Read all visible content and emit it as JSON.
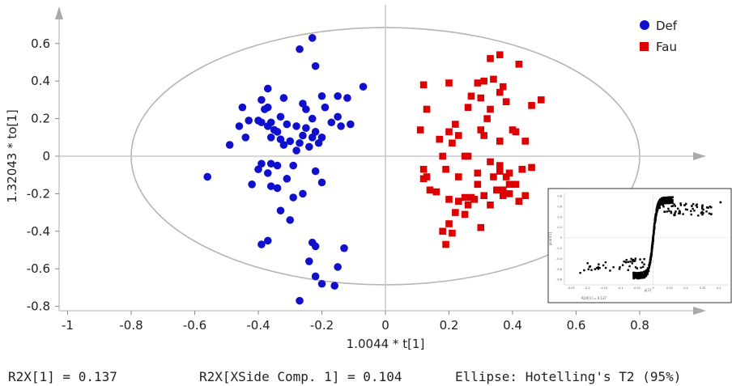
{
  "chart_data": {
    "type": "scatter",
    "title": "",
    "xlabel": "1.0044 * t[1]",
    "ylabel": "1.32043 * to[1]",
    "xlim": [
      -1,
      1.0
    ],
    "ylim": [
      -0.8,
      0.75
    ],
    "x_ticks": [
      "-1",
      "-0.8",
      "-0.6",
      "-0.4",
      "-0.2",
      "0",
      "0.2",
      "0.4",
      "0.6",
      "0.8"
    ],
    "y_ticks": [
      "0.6",
      "0.4",
      "0.2",
      "0",
      "-0.2",
      "-0.4",
      "-0.6",
      "-0.8"
    ],
    "legend_position": "top-right",
    "colors": {
      "Def": "#1010cc",
      "Fau": "#dd0000",
      "ellipse": "#b5b5b5",
      "axes": "#c8c8c8"
    },
    "ellipse": {
      "cx": 0.0,
      "cy": 0.0,
      "rx": 0.8,
      "ry": 0.685
    },
    "series": [
      {
        "name": "Def",
        "marker": "circle",
        "points": [
          [
            -0.23,
            0.63
          ],
          [
            -0.27,
            0.57
          ],
          [
            -0.22,
            0.48
          ],
          [
            -0.07,
            0.37
          ],
          [
            -0.37,
            0.36
          ],
          [
            -0.39,
            0.3
          ],
          [
            -0.32,
            0.31
          ],
          [
            -0.2,
            0.32
          ],
          [
            -0.15,
            0.32
          ],
          [
            -0.12,
            0.31
          ],
          [
            -0.26,
            0.28
          ],
          [
            -0.37,
            0.26
          ],
          [
            -0.38,
            0.25
          ],
          [
            -0.45,
            0.26
          ],
          [
            -0.25,
            0.25
          ],
          [
            -0.19,
            0.26
          ],
          [
            -0.33,
            0.21
          ],
          [
            -0.43,
            0.19
          ],
          [
            -0.15,
            0.21
          ],
          [
            -0.23,
            0.2
          ],
          [
            -0.4,
            0.19
          ],
          [
            -0.39,
            0.18
          ],
          [
            -0.36,
            0.18
          ],
          [
            -0.31,
            0.17
          ],
          [
            -0.17,
            0.18
          ],
          [
            -0.46,
            0.16
          ],
          [
            -0.11,
            0.17
          ],
          [
            -0.14,
            0.16
          ],
          [
            -0.37,
            0.16
          ],
          [
            -0.28,
            0.16
          ],
          [
            -0.25,
            0.15
          ],
          [
            -0.35,
            0.14
          ],
          [
            -0.34,
            0.13
          ],
          [
            -0.22,
            0.13
          ],
          [
            -0.44,
            0.1
          ],
          [
            -0.26,
            0.11
          ],
          [
            -0.36,
            0.1
          ],
          [
            -0.23,
            0.1
          ],
          [
            -0.2,
            0.1
          ],
          [
            -0.33,
            0.09
          ],
          [
            -0.3,
            0.08
          ],
          [
            -0.27,
            0.07
          ],
          [
            -0.21,
            0.07
          ],
          [
            -0.49,
            0.06
          ],
          [
            -0.32,
            0.06
          ],
          [
            -0.24,
            0.05
          ],
          [
            -0.28,
            0.03
          ],
          [
            -0.36,
            -0.04
          ],
          [
            -0.39,
            -0.04
          ],
          [
            -0.34,
            -0.05
          ],
          [
            -0.29,
            -0.05
          ],
          [
            -0.4,
            -0.07
          ],
          [
            -0.37,
            -0.09
          ],
          [
            -0.22,
            -0.08
          ],
          [
            -0.56,
            -0.11
          ],
          [
            -0.31,
            -0.12
          ],
          [
            -0.42,
            -0.15
          ],
          [
            -0.36,
            -0.16
          ],
          [
            -0.34,
            -0.17
          ],
          [
            -0.2,
            -0.14
          ],
          [
            -0.26,
            -0.2
          ],
          [
            -0.29,
            -0.22
          ],
          [
            -0.33,
            -0.29
          ],
          [
            -0.3,
            -0.34
          ],
          [
            -0.39,
            -0.47
          ],
          [
            -0.37,
            -0.45
          ],
          [
            -0.23,
            -0.46
          ],
          [
            -0.22,
            -0.48
          ],
          [
            -0.13,
            -0.49
          ],
          [
            -0.24,
            -0.56
          ],
          [
            -0.15,
            -0.59
          ],
          [
            -0.22,
            -0.64
          ],
          [
            -0.2,
            -0.68
          ],
          [
            -0.16,
            -0.69
          ],
          [
            -0.27,
            -0.77
          ]
        ]
      },
      {
        "name": "Fau",
        "marker": "square",
        "points": [
          [
            0.36,
            0.54
          ],
          [
            0.33,
            0.52
          ],
          [
            0.42,
            0.49
          ],
          [
            0.31,
            0.4
          ],
          [
            0.34,
            0.41
          ],
          [
            0.12,
            0.38
          ],
          [
            0.2,
            0.39
          ],
          [
            0.29,
            0.39
          ],
          [
            0.37,
            0.37
          ],
          [
            0.36,
            0.34
          ],
          [
            0.3,
            0.31
          ],
          [
            0.27,
            0.32
          ],
          [
            0.38,
            0.29
          ],
          [
            0.49,
            0.3
          ],
          [
            0.46,
            0.27
          ],
          [
            0.13,
            0.25
          ],
          [
            0.26,
            0.26
          ],
          [
            0.33,
            0.25
          ],
          [
            0.32,
            0.2
          ],
          [
            0.22,
            0.17
          ],
          [
            0.3,
            0.14
          ],
          [
            0.11,
            0.14
          ],
          [
            0.2,
            0.13
          ],
          [
            0.23,
            0.11
          ],
          [
            0.31,
            0.11
          ],
          [
            0.4,
            0.14
          ],
          [
            0.41,
            0.13
          ],
          [
            0.17,
            0.09
          ],
          [
            0.36,
            0.08
          ],
          [
            0.21,
            0.07
          ],
          [
            0.44,
            0.08
          ],
          [
            0.18,
            0.0
          ],
          [
            0.25,
            0.0
          ],
          [
            0.26,
            0.0
          ],
          [
            0.33,
            -0.03
          ],
          [
            0.36,
            -0.05
          ],
          [
            0.12,
            -0.07
          ],
          [
            0.19,
            -0.07
          ],
          [
            0.36,
            -0.08
          ],
          [
            0.29,
            -0.09
          ],
          [
            0.39,
            -0.09
          ],
          [
            0.43,
            -0.07
          ],
          [
            0.46,
            -0.06
          ],
          [
            0.13,
            -0.11
          ],
          [
            0.23,
            -0.11
          ],
          [
            0.34,
            -0.11
          ],
          [
            0.38,
            -0.11
          ],
          [
            0.12,
            -0.12
          ],
          [
            0.39,
            -0.15
          ],
          [
            0.29,
            -0.15
          ],
          [
            0.41,
            -0.15
          ],
          [
            0.37,
            -0.18
          ],
          [
            0.39,
            -0.2
          ],
          [
            0.14,
            -0.18
          ],
          [
            0.35,
            -0.18
          ],
          [
            0.16,
            -0.19
          ],
          [
            0.37,
            -0.21
          ],
          [
            0.31,
            -0.21
          ],
          [
            0.25,
            -0.22
          ],
          [
            0.27,
            -0.22
          ],
          [
            0.44,
            -0.21
          ],
          [
            0.2,
            -0.23
          ],
          [
            0.28,
            -0.23
          ],
          [
            0.23,
            -0.24
          ],
          [
            0.42,
            -0.24
          ],
          [
            0.26,
            -0.26
          ],
          [
            0.33,
            -0.26
          ],
          [
            0.22,
            -0.3
          ],
          [
            0.25,
            -0.31
          ],
          [
            0.2,
            -0.36
          ],
          [
            0.18,
            -0.4
          ],
          [
            0.3,
            -0.38
          ],
          [
            0.21,
            -0.41
          ],
          [
            0.19,
            -0.47
          ]
        ]
      }
    ],
    "footer": [
      "R2X[1] = 0.137",
      "R2X[XSide Comp. 1] = 0.104",
      "Ellipse: Hotelling's T2 (95%)"
    ],
    "inset": {
      "type": "scatter",
      "xlabel": "p[1]",
      "ylabel": "pcorr[1]",
      "x_ticks": [
        "-0.25",
        "-0.2",
        "-0.15",
        "-0.1",
        "-0.05",
        "0",
        "0.05",
        "0.1",
        "0.15",
        "0.2"
      ],
      "y_ticks": [
        "0.8",
        "0.6",
        "0.4",
        "0.2",
        "0",
        "-0.2",
        "-0.4",
        "-0.6",
        "-0.8"
      ],
      "footer": "R2X[1] = 0.137",
      "xlim": [
        -0.27,
        0.23
      ],
      "ylim": [
        -0.9,
        0.85
      ]
    }
  }
}
